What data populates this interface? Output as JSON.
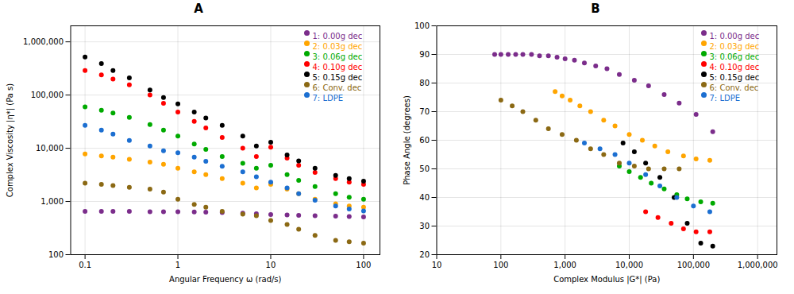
{
  "chart_data": [
    {
      "type": "scatter",
      "title": "A",
      "xlabel": "Angular Frequency ω (rad/s)",
      "ylabel": "Complex Viscosity |η*| (Pa s)",
      "log": true,
      "grid": true,
      "legend": "upper right",
      "xlim": [
        0.07,
        150
      ],
      "ylim": [
        100,
        2000000
      ],
      "xticks": [
        0.1,
        1,
        10,
        100
      ],
      "yticks": [
        100,
        {
          "value": 1000,
          "label": "1,000"
        },
        {
          "value": 10000,
          "label": "10,000"
        },
        {
          "value": 100000,
          "label": "100,000"
        },
        {
          "value": 1000000,
          "label": "1,000,000"
        }
      ],
      "series": [
        {
          "name": "1: 0.00g dec",
          "color": "#7B2D8B",
          "x": [
            0.1,
            0.15,
            0.2,
            0.3,
            0.5,
            0.7,
            1.0,
            1.5,
            2.0,
            3.0,
            5.0,
            7.0,
            10.0,
            15.0,
            20.0,
            30.0,
            50.0,
            70.0,
            100.0
          ],
          "values": [
            650,
            650,
            650,
            650,
            640,
            640,
            640,
            635,
            630,
            620,
            605,
            590,
            570,
            560,
            550,
            540,
            530,
            520,
            510
          ]
        },
        {
          "name": "2: 0.03g dec",
          "color": "#FFA500",
          "x": [
            0.1,
            0.15,
            0.2,
            0.3,
            0.5,
            0.7,
            1.0,
            1.5,
            2.0,
            3.0,
            5.0,
            7.0,
            10.0,
            15.0,
            20.0,
            30.0,
            50.0,
            70.0,
            100.0
          ],
          "values": [
            7800,
            7200,
            6800,
            6200,
            5500,
            5000,
            4200,
            3600,
            3200,
            2700,
            2200,
            1800,
            2100,
            1700,
            1400,
            1100,
            900,
            820,
            780
          ]
        },
        {
          "name": "3: 0.06g dec",
          "color": "#00AA00",
          "x": [
            0.1,
            0.15,
            0.2,
            0.3,
            0.5,
            0.7,
            1.0,
            1.5,
            2.0,
            3.0,
            5.0,
            7.0,
            10.0,
            15.0,
            20.0,
            30.0,
            50.0,
            70.0,
            100.0
          ],
          "values": [
            60000,
            52000,
            46000,
            38000,
            28000,
            22000,
            17000,
            12000,
            9500,
            7000,
            5200,
            4200,
            4800,
            3200,
            2500,
            1900,
            1400,
            1200,
            1100
          ]
        },
        {
          "name": "4: 0.10g dec",
          "color": "#FF0000",
          "x": [
            0.1,
            0.15,
            0.2,
            0.3,
            0.5,
            0.7,
            1.0,
            1.5,
            2.0,
            3.0,
            5.0,
            7.0,
            10.0,
            15.0,
            20.0,
            30.0,
            50.0,
            70.0,
            100.0
          ],
          "values": [
            290000,
            240000,
            200000,
            155000,
            100000,
            70000,
            48000,
            32000,
            24000,
            16000,
            10000,
            7000,
            10500,
            6500,
            4800,
            3500,
            2700,
            2300,
            2100
          ]
        },
        {
          "name": "5: 0.15g dec",
          "color": "#000000",
          "x": [
            0.1,
            0.15,
            0.2,
            0.3,
            0.5,
            0.7,
            1.0,
            1.5,
            2.0,
            3.0,
            5.0,
            7.0,
            10.0,
            15.0,
            20.0,
            30.0,
            50.0,
            70.0,
            100.0
          ],
          "values": [
            520000,
            390000,
            290000,
            210000,
            125000,
            90000,
            68000,
            48000,
            37000,
            27000,
            17000,
            11000,
            13000,
            7500,
            5800,
            4200,
            3100,
            2700,
            2400
          ]
        },
        {
          "name": "6: Conv. dec",
          "color": "#8B6914",
          "x": [
            0.1,
            0.15,
            0.2,
            0.3,
            0.5,
            0.7,
            1.0,
            1.5,
            2.0,
            3.0,
            5.0,
            7.0,
            10.0,
            15.0,
            20.0,
            30.0,
            50.0,
            70.0,
            100.0
          ],
          "values": [
            2200,
            2100,
            2000,
            1850,
            1700,
            1500,
            1100,
            880,
            780,
            650,
            580,
            540,
            440,
            370,
            300,
            230,
            185,
            175,
            165
          ]
        },
        {
          "name": "7: LDPE",
          "color": "#1C6FD1",
          "x": [
            0.1,
            0.15,
            0.2,
            0.3,
            0.5,
            0.7,
            1.0,
            1.5,
            2.0,
            3.0,
            5.0,
            7.0,
            10.0,
            15.0,
            20.0,
            30.0,
            50.0,
            70.0,
            100.0
          ],
          "values": [
            27000,
            22000,
            18500,
            14000,
            11000,
            9000,
            8200,
            6800,
            5700,
            4600,
            3600,
            2900,
            2300,
            1800,
            1400,
            1050,
            820,
            720,
            660
          ]
        }
      ]
    },
    {
      "type": "scatter",
      "title": "B",
      "xlabel": "Complex Modulus |G*| (Pa)",
      "ylabel": "Phase Angle (degrees)",
      "log": "x",
      "grid": true,
      "legend": "upper right",
      "xlim": [
        10,
        2000000
      ],
      "ylim": [
        20,
        100
      ],
      "xticks": [
        10,
        100,
        {
          "value": 1000,
          "label": "1,000"
        },
        {
          "value": 10000,
          "label": "10,000"
        },
        {
          "value": 100000,
          "label": "100,000"
        },
        {
          "value": 1000000,
          "label": "1,000,000"
        }
      ],
      "yticks": [
        20,
        30,
        40,
        50,
        60,
        70,
        80,
        90,
        100
      ],
      "series": [
        {
          "name": "1: 0.00g dec",
          "color": "#7B2D8B",
          "x": [
            80,
            100,
            130,
            170,
            220,
            300,
            400,
            550,
            750,
            1000,
            1400,
            2000,
            3000,
            4500,
            7000,
            12000,
            20000,
            35000,
            60000,
            110000,
            200000
          ],
          "values": [
            90,
            90,
            90,
            90,
            90,
            90,
            89.5,
            89.5,
            89,
            88.5,
            88,
            87,
            86,
            85,
            83,
            81,
            79,
            76,
            73,
            69,
            63
          ]
        },
        {
          "name": "2: 0.03g dec",
          "color": "#FFA500",
          "x": [
            700,
            900,
            1200,
            1700,
            2500,
            4000,
            6000,
            10000,
            16000,
            25000,
            40000,
            70000,
            110000,
            180000
          ],
          "values": [
            77,
            75.5,
            74,
            72,
            70,
            67,
            65,
            62,
            60,
            58,
            56,
            54.5,
            53.5,
            53
          ]
        },
        {
          "name": "3: 0.06g dec",
          "color": "#00AA00",
          "x": [
            7000,
            10000,
            15000,
            22000,
            35000,
            55000,
            80000,
            130000,
            200000
          ],
          "values": [
            51,
            49,
            47,
            45,
            43,
            41,
            39.5,
            38.5,
            38
          ]
        },
        {
          "name": "4: 0.10g dec",
          "color": "#FF0000",
          "x": [
            18000,
            28000,
            45000,
            70000,
            110000,
            180000
          ],
          "values": [
            35,
            33,
            31,
            29,
            28,
            28
          ]
        },
        {
          "name": "5: 0.15g dec",
          "color": "#000000",
          "x": [
            8000,
            12000,
            18000,
            30000,
            50000,
            80000,
            130000,
            200000
          ],
          "values": [
            59,
            56,
            52,
            47,
            40,
            31,
            24,
            23
          ]
        },
        {
          "name": "6: Conv. dec",
          "color": "#8B6914",
          "x": [
            100,
            150,
            220,
            350,
            550,
            900,
            1500,
            2500,
            4000,
            7000,
            12000,
            20000,
            35000,
            60000
          ],
          "values": [
            74,
            72,
            70,
            67,
            64,
            62,
            60,
            57,
            55,
            52,
            51,
            50,
            50,
            50
          ]
        },
        {
          "name": "7: LDPE",
          "color": "#1C6FD1",
          "x": [
            2000,
            3500,
            6000,
            10000,
            18000,
            30000,
            55000,
            100000,
            180000
          ],
          "values": [
            59,
            57,
            55,
            52,
            48,
            44,
            40,
            37,
            35
          ]
        }
      ]
    }
  ]
}
